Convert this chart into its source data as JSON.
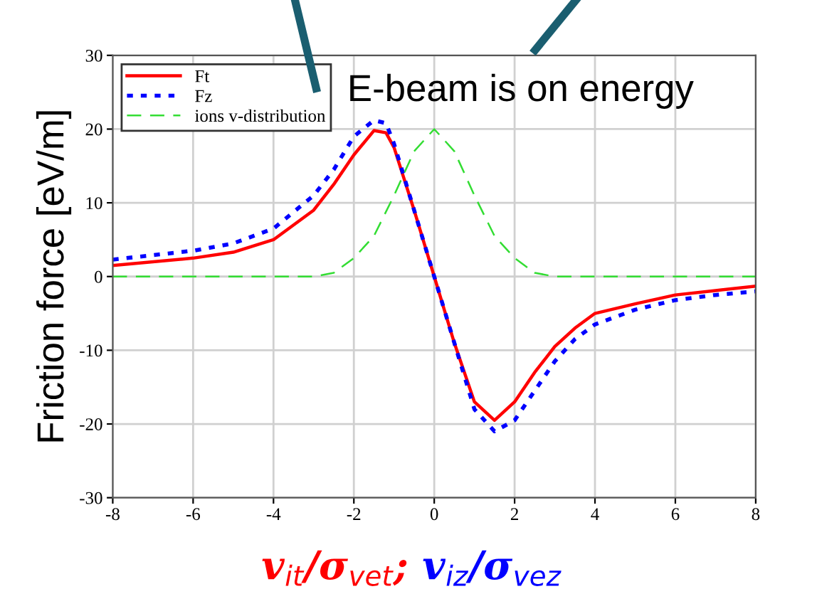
{
  "chart_data": {
    "type": "line",
    "ylabel": "Friction force [eV/m]",
    "xlabel": "v$_{it}$/σ$_{vet}$; v$_{iz}$/σ$_{vez}$",
    "annotations": [
      "E-beam is on energy"
    ],
    "xlim": [
      -8,
      8
    ],
    "xticks": [
      -8,
      -6,
      -4,
      -2,
      0,
      2,
      4,
      6,
      8
    ],
    "ylim": [
      -30,
      30
    ],
    "yticks": [
      -30,
      -20,
      -10,
      0,
      10,
      20,
      30
    ],
    "grid": true,
    "legend": "top left",
    "series": [
      {
        "name": "Ft",
        "color": "#ff0000",
        "line_style": "solid",
        "x": [
          -8,
          -6,
          -5,
          -4,
          -3,
          -2.5,
          -2,
          -1.5,
          -1.2,
          -1,
          -0.5,
          0,
          0.5,
          1,
          1.5,
          2,
          2.5,
          3,
          3.5,
          4,
          5,
          6,
          7,
          8
        ],
        "values": [
          1.5,
          2.5,
          3.3,
          5,
          9,
          12.5,
          16.5,
          19.8,
          19.5,
          17.5,
          9,
          0,
          -9,
          -17,
          -19.5,
          -17,
          -13,
          -9.5,
          -7,
          -5,
          -3.7,
          -2.5,
          -1.9,
          -1.3
        ]
      },
      {
        "name": "Fz",
        "color": "#0000ff",
        "line_style": "dotted",
        "x": [
          -8,
          -6,
          -5,
          -4,
          -3,
          -2.5,
          -2,
          -1.5,
          -1.2,
          -1,
          -0.5,
          0,
          0.5,
          1,
          1.5,
          2,
          2.5,
          3,
          3.5,
          4,
          5,
          6,
          7,
          8
        ],
        "values": [
          2.3,
          3.5,
          4.5,
          6.5,
          11,
          14.5,
          19,
          21.2,
          20.8,
          18,
          9,
          0,
          -9,
          -18,
          -21,
          -19.5,
          -15.5,
          -11.5,
          -8.5,
          -6.5,
          -4.5,
          -3.2,
          -2.5,
          -2
        ]
      },
      {
        "name": "ions v-distribution",
        "color": "#33dd33",
        "line_style": "dashed",
        "x": [
          -8,
          -3,
          -2.5,
          -2,
          -1.5,
          -1,
          -0.5,
          0,
          0.5,
          1,
          1.5,
          2,
          2.5,
          3,
          8
        ],
        "values": [
          0,
          0,
          0.5,
          2.5,
          5.5,
          11,
          17,
          20,
          17,
          11,
          5.5,
          2.5,
          0.5,
          0,
          0
        ]
      }
    ]
  }
}
